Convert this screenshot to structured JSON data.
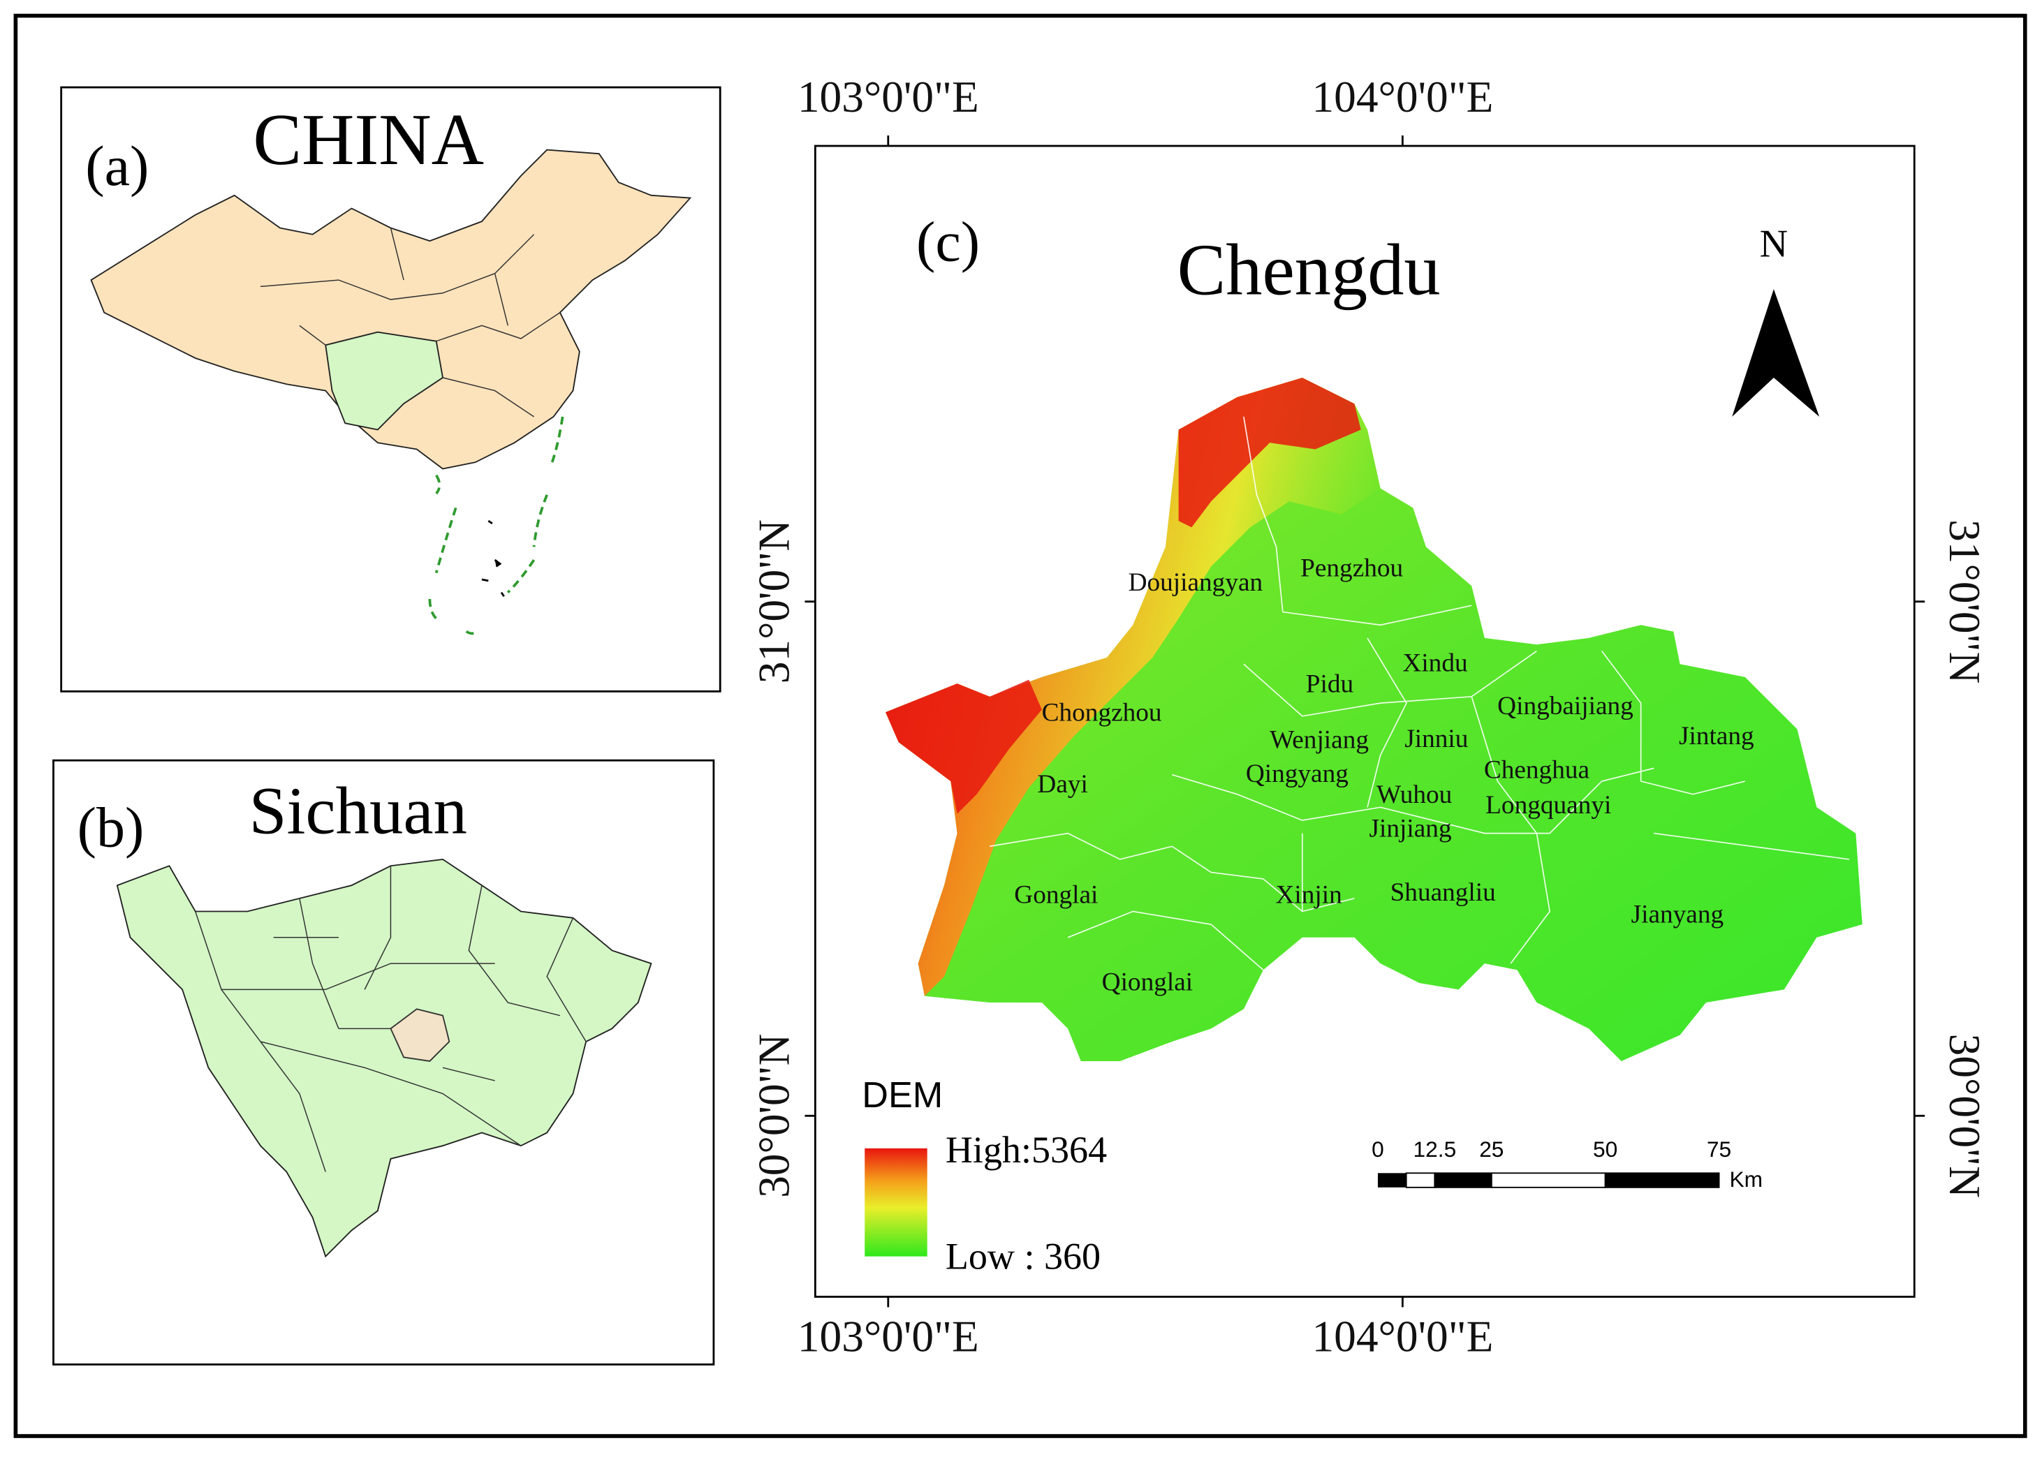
{
  "panel_a": {
    "label": "(a)",
    "title": "CHINA"
  },
  "panel_b": {
    "label": "(b)",
    "title": "Sichuan"
  },
  "panel_c": {
    "label": "(c)",
    "title": "Chengdu",
    "north": "N",
    "longitudes": [
      "103°0'0\"E",
      "104°0'0\"E"
    ],
    "latitudes": [
      "31°0'0\"N",
      "30°0'0\"N"
    ],
    "districts": [
      "Doujiangyan",
      "Pengzhou",
      "Xindu",
      "Pidu",
      "Qingbaijiang",
      "Chongzhou",
      "Jintang",
      "Wenjiang",
      "Jinniu",
      "Chenghua",
      "Qingyang",
      "Dayi",
      "Wuhou",
      "Longquanyi",
      "Jinjiang",
      "Gonglai",
      "Xinjin",
      "Shuangliu",
      "Jianyang",
      "Qionglai"
    ],
    "legend": {
      "title": "DEM",
      "high": "High:5364",
      "low": "Low : 360"
    },
    "scale_bar": {
      "ticks": [
        0,
        12.5,
        25,
        50,
        75
      ],
      "unit": "Km"
    }
  }
}
